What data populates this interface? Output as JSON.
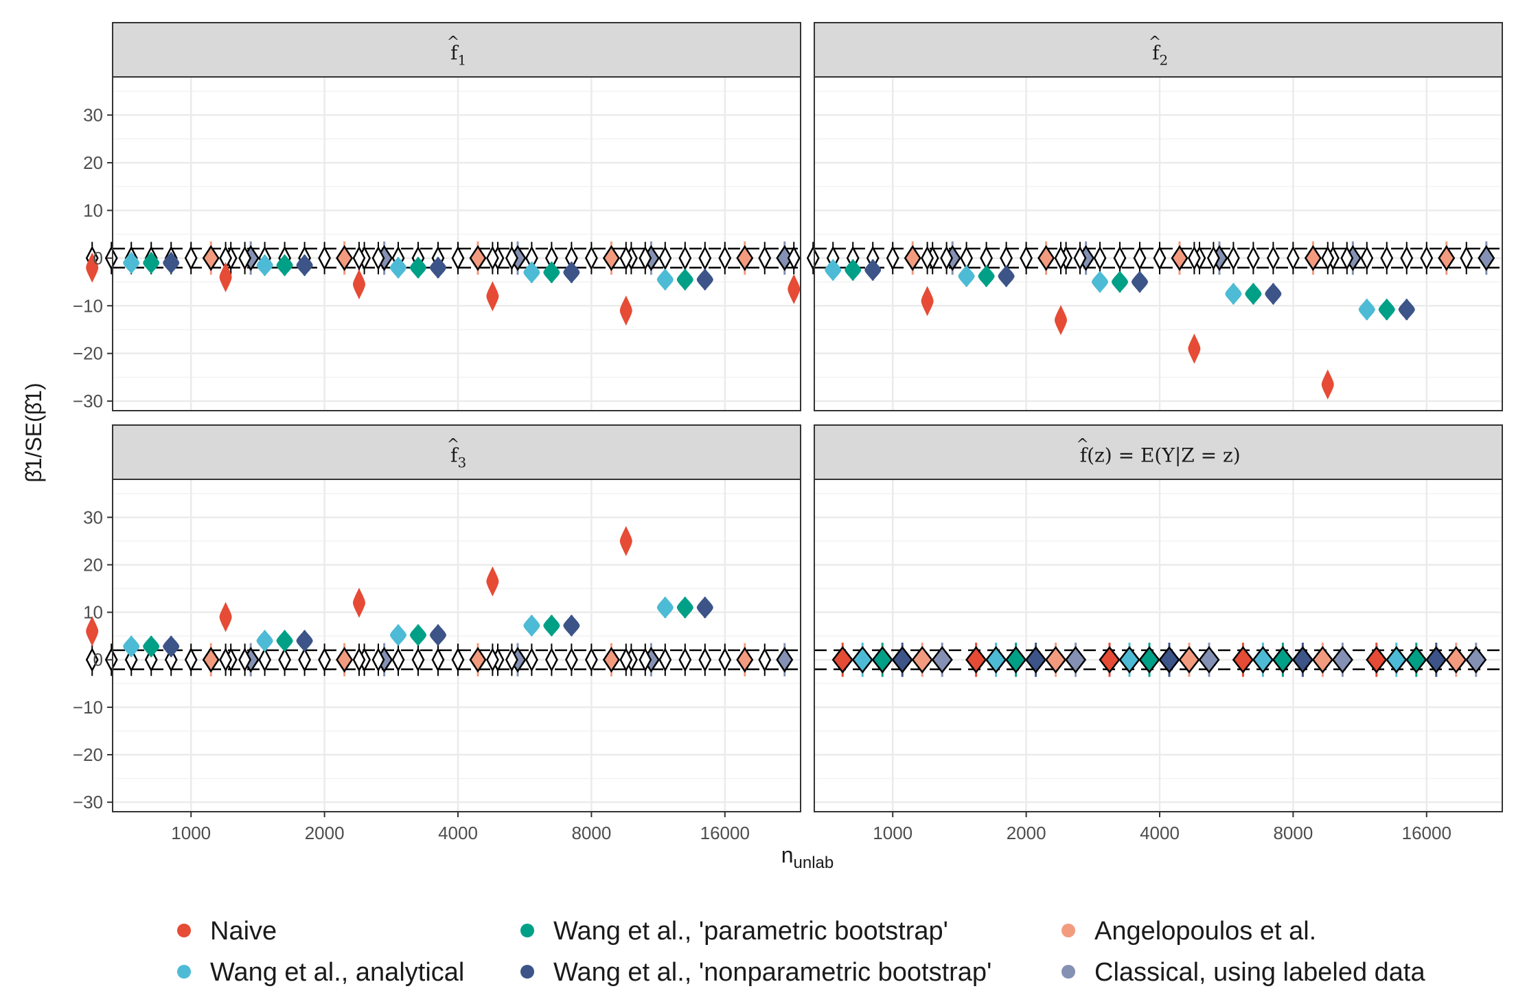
{
  "chart_data": {
    "type": "violin",
    "xlabel": "n_unlab",
    "ylabel": "β̂1/SE(β̂1)",
    "x_categories": [
      "1000",
      "2000",
      "4000",
      "8000",
      "16000"
    ],
    "yticks": [
      30,
      20,
      10,
      0,
      -10,
      -20,
      -30
    ],
    "ylim": [
      -32,
      38
    ],
    "reference_lines": [
      2,
      -2
    ],
    "series": [
      {
        "key": "naive",
        "name": "Naive",
        "color": "#E64B35"
      },
      {
        "key": "wang_analytical",
        "name": "Wang et al., analytical",
        "color": "#4DBBD5"
      },
      {
        "key": "wang_param",
        "name": "Wang et al., 'parametric bootstrap'",
        "color": "#00A087"
      },
      {
        "key": "wang_nonparam",
        "name": "Wang et al., 'nonparametric bootstrap'",
        "color": "#3C5488"
      },
      {
        "key": "angelopoulos",
        "name": "Angelopoulos et al.",
        "color": "#F39B7F"
      },
      {
        "key": "classical",
        "name": "Classical, using labeled data",
        "color": "#8491B4"
      }
    ],
    "legend": {
      "position": "bottom",
      "rows": [
        [
          "naive",
          "wang_param",
          "angelopoulos"
        ],
        [
          "wang_analytical",
          "wang_nonparam",
          "classical"
        ]
      ]
    },
    "panels": [
      {
        "key": "f1",
        "title_base": "f",
        "title_sub": "1",
        "title_hat": "^",
        "title_rest": "",
        "values": {
          "naive": [
            -2,
            -4,
            -5.5,
            -8,
            -11
          ],
          "wang_analytical": [
            -1,
            -1.5,
            -2,
            -3,
            -4.5
          ],
          "wang_param": [
            -1,
            -1.5,
            -2,
            -3,
            -4.5
          ],
          "wang_nonparam": [
            -1,
            -1.5,
            -2,
            -3,
            -4.5
          ],
          "angelopoulos": [
            0,
            0,
            0,
            0,
            0
          ],
          "classical": [
            0,
            0,
            0,
            0,
            0
          ]
        }
      },
      {
        "key": "f2",
        "title_base": "f",
        "title_sub": "2",
        "title_hat": "^",
        "title_rest": "",
        "values": {
          "naive": [
            -6.5,
            -9,
            -13,
            -19,
            -26.5
          ],
          "wang_analytical": [
            -2.5,
            -3.8,
            -5,
            -7.5,
            -10.8
          ],
          "wang_param": [
            -2.5,
            -3.8,
            -5,
            -7.5,
            -10.8
          ],
          "wang_nonparam": [
            -2.5,
            -3.8,
            -5,
            -7.5,
            -10.8
          ],
          "angelopoulos": [
            0,
            0,
            0,
            0,
            0
          ],
          "classical": [
            0,
            0,
            0,
            0,
            0
          ]
        }
      },
      {
        "key": "f3",
        "title_base": "f",
        "title_sub": "3",
        "title_hat": "^",
        "title_rest": "",
        "values": {
          "naive": [
            6,
            9,
            12,
            16.5,
            25
          ],
          "wang_analytical": [
            2.8,
            4,
            5.2,
            7.2,
            11
          ],
          "wang_param": [
            2.8,
            4,
            5.2,
            7.2,
            11
          ],
          "wang_nonparam": [
            2.8,
            4,
            5.2,
            7.2,
            11
          ],
          "angelopoulos": [
            0,
            0,
            0,
            0,
            0
          ],
          "classical": [
            0,
            0,
            0,
            0,
            0
          ]
        }
      },
      {
        "key": "fz",
        "title_base": "f",
        "title_sub": "",
        "title_hat": "^",
        "title_rest": "(z) = E(Y|Z = z)",
        "values": {
          "naive": [
            0,
            0,
            0,
            0,
            0
          ],
          "wang_analytical": [
            0,
            0,
            0,
            0,
            0
          ],
          "wang_param": [
            0,
            0,
            0,
            0,
            0
          ],
          "wang_nonparam": [
            0,
            0,
            0,
            0,
            0
          ],
          "angelopoulos": [
            0,
            0,
            0,
            0,
            0
          ],
          "classical": [
            0,
            0,
            0,
            0,
            0
          ]
        }
      }
    ]
  }
}
